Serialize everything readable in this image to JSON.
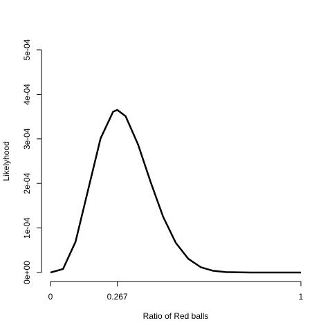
{
  "chart_data": {
    "type": "line",
    "x_label": "Ratio of Red balls",
    "y_label": "Likelyhood",
    "x": [
      0,
      0.05,
      0.1,
      0.15,
      0.2,
      0.25,
      0.267,
      0.3,
      0.35,
      0.4,
      0.45,
      0.5,
      0.55,
      0.6,
      0.65,
      0.7,
      0.8,
      0.9,
      1
    ],
    "series": [
      {
        "color": "#000000",
        "values": [
          0,
          7.8e-06,
          6.9e-05,
          0.000185,
          0.000301,
          0.000361,
          0.000365,
          0.000351,
          0.000287,
          0.000203,
          0.000125,
          6.7e-05,
          3.1e-05,
          1.2e-05,
          3.8e-06,
          9e-07,
          0,
          0,
          0
        ]
      }
    ],
    "xlim": [
      0,
      1
    ],
    "ylim": [
      0,
      0.0005
    ],
    "xticks": [
      0,
      0.267,
      1
    ],
    "yticks": [
      {
        "value": 0,
        "label": "0e+00"
      },
      {
        "value": 0.0001,
        "label": "1e-04"
      },
      {
        "value": 0.0002,
        "label": "2e-04"
      },
      {
        "value": 0.0003,
        "label": "3e-04"
      },
      {
        "value": 0.0004,
        "label": "4e-04"
      },
      {
        "value": 0.0005,
        "label": "5e-04"
      }
    ]
  }
}
